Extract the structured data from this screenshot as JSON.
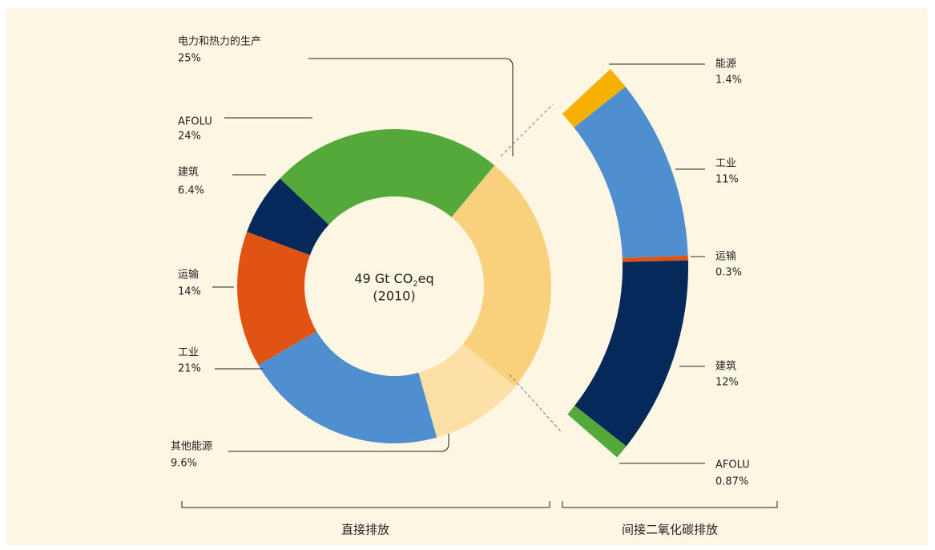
{
  "chart_data": [
    {
      "type": "donut",
      "center_title": {
        "main": "49 Gt CO",
        "sub": "2",
        "tail": "eq"
      },
      "center_subtitle": "(2010)",
      "caption": "直接排放",
      "categories": [
        "电力和热力的生产",
        "其他能源",
        "工业",
        "运输",
        "建筑",
        "AFOLU"
      ],
      "values": [
        25,
        9.6,
        21,
        14,
        6.4,
        24
      ],
      "value_labels": [
        "25%",
        "9.6%",
        "21%",
        "14%",
        "6.4%",
        "24%"
      ],
      "colors": [
        "#f9d07c",
        "#fde0a8",
        "#4f8fcf",
        "#e05312",
        "#06295b",
        "#54a93a"
      ]
    },
    {
      "type": "arc",
      "caption": "间接二氧化碳排放",
      "categories": [
        "能源",
        "工业",
        "运输",
        "建筑",
        "AFOLU"
      ],
      "values": [
        1.4,
        11,
        0.3,
        12,
        0.87
      ],
      "value_labels": [
        "1.4%",
        "11%",
        "0.3%",
        "12%",
        "0.87%"
      ],
      "colors": [
        "#f5b000",
        "#4f8fcf",
        "#e05312",
        "#06295b",
        "#54a93a"
      ]
    }
  ]
}
